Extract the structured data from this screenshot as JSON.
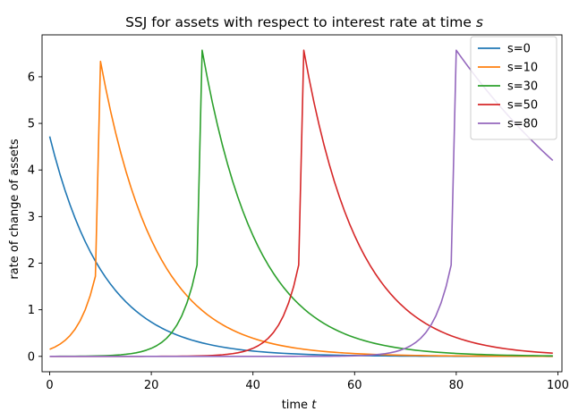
{
  "chart_data": {
    "type": "line",
    "title": "SSJ for assets with respect to interest rate at time ",
    "title_italic": "s",
    "xlabel": "time ",
    "xlabel_italic": "t",
    "ylabel": "rate of change of assets",
    "xlim": [
      -1.5,
      100.8
    ],
    "ylim": [
      -0.33,
      6.9
    ],
    "x_ticks": [
      0,
      20,
      40,
      60,
      80,
      100
    ],
    "y_ticks": [
      0,
      1,
      2,
      3,
      4,
      5,
      6
    ],
    "legend_position": "top-right",
    "x_start": 0,
    "x_end": 99,
    "series": [
      {
        "name": "s=0",
        "color": "#1f77b4",
        "shock": 0,
        "peak": 4.72,
        "pre": 0,
        "decay": 0.093
      },
      {
        "name": "s=10",
        "color": "#ff7f0e",
        "shock": 10,
        "peak": 6.33,
        "pre": 1.72,
        "decay": 0.093
      },
      {
        "name": "s=30",
        "color": "#2ca02c",
        "shock": 30,
        "peak": 6.57,
        "pre": 1.96,
        "decay": 0.093
      },
      {
        "name": "s=50",
        "color": "#d62728",
        "shock": 50,
        "peak": 6.57,
        "pre": 1.96,
        "decay": 0.093
      },
      {
        "name": "s=80",
        "color": "#9467bd",
        "shock": 80,
        "peak": 6.57,
        "pre": 1.96,
        "decay": 0.0235
      }
    ]
  }
}
